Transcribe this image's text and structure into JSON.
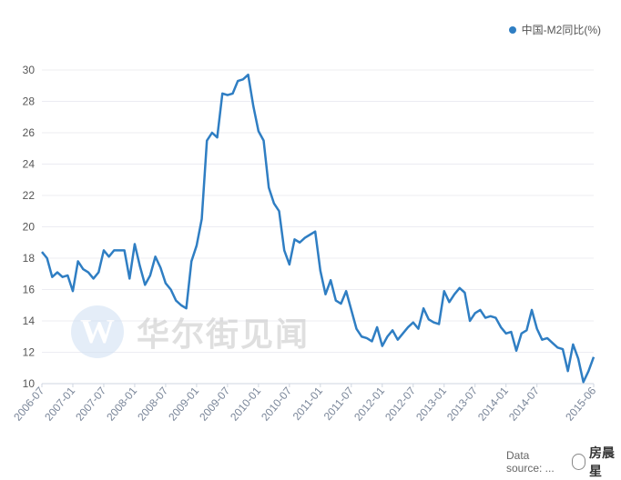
{
  "legend": {
    "label": "中国-M2同比(%)",
    "color": "#2f7ec3"
  },
  "watermark": {
    "logo_letter": "W",
    "text": "华尔街见闻"
  },
  "footer": {
    "source": "Data source: ...",
    "brand": "房晨星"
  },
  "chart_data": {
    "type": "line",
    "title": "",
    "xlabel": "",
    "ylabel": "",
    "ylim": [
      10,
      30
    ],
    "yticks": [
      10,
      12,
      14,
      16,
      18,
      20,
      22,
      24,
      26,
      28,
      30
    ],
    "xtick_labels": [
      "2006-07",
      "2007-01",
      "2007-07",
      "2008-01",
      "2008-07",
      "2009-01",
      "2009-07",
      "2010-01",
      "2010-07",
      "2011-01",
      "2011-07",
      "2012-01",
      "2012-07",
      "2013-01",
      "2013-07",
      "2014-01",
      "2014-07",
      "2015-06"
    ],
    "grid": true,
    "legend_position": "top-right",
    "series": [
      {
        "name": "中国-M2同比(%)",
        "color": "#2f7ec3",
        "x": [
          "2006-07",
          "2006-08",
          "2006-09",
          "2006-10",
          "2006-11",
          "2006-12",
          "2007-01",
          "2007-02",
          "2007-03",
          "2007-04",
          "2007-05",
          "2007-06",
          "2007-07",
          "2007-08",
          "2007-09",
          "2007-10",
          "2007-11",
          "2007-12",
          "2008-01",
          "2008-02",
          "2008-03",
          "2008-04",
          "2008-05",
          "2008-06",
          "2008-07",
          "2008-08",
          "2008-09",
          "2008-10",
          "2008-11",
          "2008-12",
          "2009-01",
          "2009-02",
          "2009-03",
          "2009-04",
          "2009-05",
          "2009-06",
          "2009-07",
          "2009-08",
          "2009-09",
          "2009-10",
          "2009-11",
          "2009-12",
          "2010-01",
          "2010-02",
          "2010-03",
          "2010-04",
          "2010-05",
          "2010-06",
          "2010-07",
          "2010-08",
          "2010-09",
          "2010-10",
          "2010-11",
          "2010-12",
          "2011-01",
          "2011-02",
          "2011-03",
          "2011-04",
          "2011-05",
          "2011-06",
          "2011-07",
          "2011-08",
          "2011-09",
          "2011-10",
          "2011-11",
          "2011-12",
          "2012-01",
          "2012-02",
          "2012-03",
          "2012-04",
          "2012-05",
          "2012-06",
          "2012-07",
          "2012-08",
          "2012-09",
          "2012-10",
          "2012-11",
          "2012-12",
          "2013-01",
          "2013-02",
          "2013-03",
          "2013-04",
          "2013-05",
          "2013-06",
          "2013-07",
          "2013-08",
          "2013-09",
          "2013-10",
          "2013-11",
          "2013-12",
          "2014-01",
          "2014-02",
          "2014-03",
          "2014-04",
          "2014-05",
          "2014-06",
          "2014-07",
          "2014-08",
          "2014-09",
          "2014-10",
          "2014-11",
          "2014-12",
          "2015-01",
          "2015-02",
          "2015-03",
          "2015-04",
          "2015-05",
          "2015-06"
        ],
        "values": [
          18.4,
          18.0,
          16.8,
          17.1,
          16.8,
          16.9,
          15.9,
          17.8,
          17.3,
          17.1,
          16.7,
          17.1,
          18.5,
          18.1,
          18.5,
          18.5,
          18.5,
          16.7,
          18.9,
          17.5,
          16.3,
          16.9,
          18.1,
          17.4,
          16.4,
          16.0,
          15.3,
          15.0,
          14.8,
          17.8,
          18.8,
          20.5,
          25.5,
          26.0,
          25.7,
          28.5,
          28.4,
          28.5,
          29.3,
          29.4,
          29.7,
          27.7,
          26.1,
          25.5,
          22.5,
          21.5,
          21.0,
          18.5,
          17.6,
          19.2,
          19.0,
          19.3,
          19.5,
          19.7,
          17.2,
          15.7,
          16.6,
          15.3,
          15.1,
          15.9,
          14.7,
          13.5,
          13.0,
          12.9,
          12.7,
          13.6,
          12.4,
          13.0,
          13.4,
          12.8,
          13.2,
          13.6,
          13.9,
          13.5,
          14.8,
          14.1,
          13.9,
          13.8,
          15.9,
          15.2,
          15.7,
          16.1,
          15.8,
          14.0,
          14.5,
          14.7,
          14.2,
          14.3,
          14.2,
          13.6,
          13.2,
          13.3,
          12.1,
          13.2,
          13.4,
          14.7,
          13.5,
          12.8,
          12.9,
          12.6,
          12.3,
          12.2,
          10.8,
          12.5,
          11.6,
          10.1,
          10.8,
          11.7
        ]
      }
    ]
  }
}
